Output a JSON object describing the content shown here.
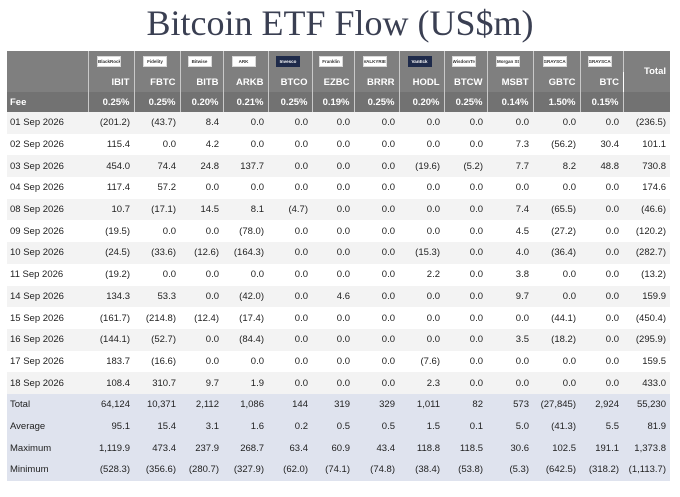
{
  "title": "Bitcoin ETF Flow (US$m)",
  "total_header": "Total",
  "fee_label": "Fee",
  "logos": [
    {
      "text": "BlackRock",
      "dark": false
    },
    {
      "text": "Fidelity",
      "dark": false
    },
    {
      "text": "Bitwise",
      "dark": false
    },
    {
      "text": "ARK",
      "dark": false
    },
    {
      "text": "Invesco",
      "dark": true
    },
    {
      "text": "Franklin",
      "dark": false
    },
    {
      "text": "VALKYRIE",
      "dark": false
    },
    {
      "text": "VanEck",
      "dark": true
    },
    {
      "text": "WisdomTree",
      "dark": false
    },
    {
      "text": "Morgan Stanley",
      "dark": false
    },
    {
      "text": "GRAYSCALE",
      "dark": false
    },
    {
      "text": "GRAYSCALE",
      "dark": false
    }
  ],
  "tickers": [
    "IBIT",
    "FBTC",
    "BITB",
    "ARKB",
    "BTCO",
    "EZBC",
    "BRRR",
    "HODL",
    "BTCW",
    "MSBT",
    "GBTC",
    "BTC"
  ],
  "fees": [
    "0.25%",
    "0.25%",
    "0.20%",
    "0.21%",
    "0.25%",
    "0.19%",
    "0.25%",
    "0.20%",
    "0.25%",
    "0.14%",
    "1.50%",
    "0.15%"
  ],
  "rows": [
    {
      "date": "01 Sep 2026",
      "values": [
        "(201.2)",
        "(43.7)",
        "8.4",
        "0.0",
        "0.0",
        "0.0",
        "0.0",
        "0.0",
        "0.0",
        "0.0",
        "0.0",
        "0.0"
      ],
      "total": "(236.5)"
    },
    {
      "date": "02 Sep 2026",
      "values": [
        "115.4",
        "0.0",
        "4.2",
        "0.0",
        "0.0",
        "0.0",
        "0.0",
        "0.0",
        "0.0",
        "7.3",
        "(56.2)",
        "30.4"
      ],
      "total": "101.1"
    },
    {
      "date": "03 Sep 2026",
      "values": [
        "454.0",
        "74.4",
        "24.8",
        "137.7",
        "0.0",
        "0.0",
        "0.0",
        "(19.6)",
        "(5.2)",
        "7.7",
        "8.2",
        "48.8"
      ],
      "total": "730.8"
    },
    {
      "date": "04 Sep 2026",
      "values": [
        "117.4",
        "57.2",
        "0.0",
        "0.0",
        "0.0",
        "0.0",
        "0.0",
        "0.0",
        "0.0",
        "0.0",
        "0.0",
        "0.0"
      ],
      "total": "174.6"
    },
    {
      "date": "08 Sep 2026",
      "values": [
        "10.7",
        "(17.1)",
        "14.5",
        "8.1",
        "(4.7)",
        "0.0",
        "0.0",
        "0.0",
        "0.0",
        "7.4",
        "(65.5)",
        "0.0"
      ],
      "total": "(46.6)"
    },
    {
      "date": "09 Sep 2026",
      "values": [
        "(19.5)",
        "0.0",
        "0.0",
        "(78.0)",
        "0.0",
        "0.0",
        "0.0",
        "0.0",
        "0.0",
        "4.5",
        "(27.2)",
        "0.0"
      ],
      "total": "(120.2)"
    },
    {
      "date": "10 Sep 2026",
      "values": [
        "(24.5)",
        "(33.6)",
        "(12.6)",
        "(164.3)",
        "0.0",
        "0.0",
        "0.0",
        "(15.3)",
        "0.0",
        "4.0",
        "(36.4)",
        "0.0"
      ],
      "total": "(282.7)"
    },
    {
      "date": "11 Sep 2026",
      "values": [
        "(19.2)",
        "0.0",
        "0.0",
        "0.0",
        "0.0",
        "0.0",
        "0.0",
        "2.2",
        "0.0",
        "3.8",
        "0.0",
        "0.0"
      ],
      "total": "(13.2)"
    },
    {
      "date": "14 Sep 2026",
      "values": [
        "134.3",
        "53.3",
        "0.0",
        "(42.0)",
        "0.0",
        "4.6",
        "0.0",
        "0.0",
        "0.0",
        "9.7",
        "0.0",
        "0.0"
      ],
      "total": "159.9"
    },
    {
      "date": "15 Sep 2026",
      "values": [
        "(161.7)",
        "(214.8)",
        "(12.4)",
        "(17.4)",
        "0.0",
        "0.0",
        "0.0",
        "0.0",
        "0.0",
        "0.0",
        "(44.1)",
        "0.0"
      ],
      "total": "(450.4)"
    },
    {
      "date": "16 Sep 2026",
      "values": [
        "(144.1)",
        "(52.7)",
        "0.0",
        "(84.4)",
        "0.0",
        "0.0",
        "0.0",
        "0.0",
        "0.0",
        "3.5",
        "(18.2)",
        "0.0"
      ],
      "total": "(295.9)"
    },
    {
      "date": "17 Sep 2026",
      "values": [
        "183.7",
        "(16.6)",
        "0.0",
        "0.0",
        "0.0",
        "0.0",
        "0.0",
        "(7.6)",
        "0.0",
        "0.0",
        "0.0",
        "0.0"
      ],
      "total": "159.5"
    },
    {
      "date": "18 Sep 2026",
      "values": [
        "108.4",
        "310.7",
        "9.7",
        "1.9",
        "0.0",
        "0.0",
        "0.0",
        "2.3",
        "0.0",
        "0.0",
        "0.0",
        "0.0"
      ],
      "total": "433.0"
    }
  ],
  "summary": [
    {
      "label": "Total",
      "values": [
        "64,124",
        "10,371",
        "2,112",
        "1,086",
        "144",
        "319",
        "329",
        "1,011",
        "82",
        "573",
        "(27,845)",
        "2,924"
      ],
      "total": "55,230"
    },
    {
      "label": "Average",
      "values": [
        "95.1",
        "15.4",
        "3.1",
        "1.6",
        "0.2",
        "0.5",
        "0.5",
        "1.5",
        "0.1",
        "5.0",
        "(41.3)",
        "5.5"
      ],
      "total": "81.9"
    },
    {
      "label": "Maximum",
      "values": [
        "1,119.9",
        "473.4",
        "237.9",
        "268.7",
        "63.4",
        "60.9",
        "43.4",
        "118.8",
        "118.5",
        "30.6",
        "102.5",
        "191.1"
      ],
      "total": "1,373.8"
    },
    {
      "label": "Minimum",
      "values": [
        "(528.3)",
        "(356.6)",
        "(280.7)",
        "(327.9)",
        "(62.0)",
        "(74.1)",
        "(74.8)",
        "(38.4)",
        "(53.8)",
        "(5.3)",
        "(642.5)",
        "(318.2)"
      ],
      "total": "(1,113.7)"
    }
  ]
}
